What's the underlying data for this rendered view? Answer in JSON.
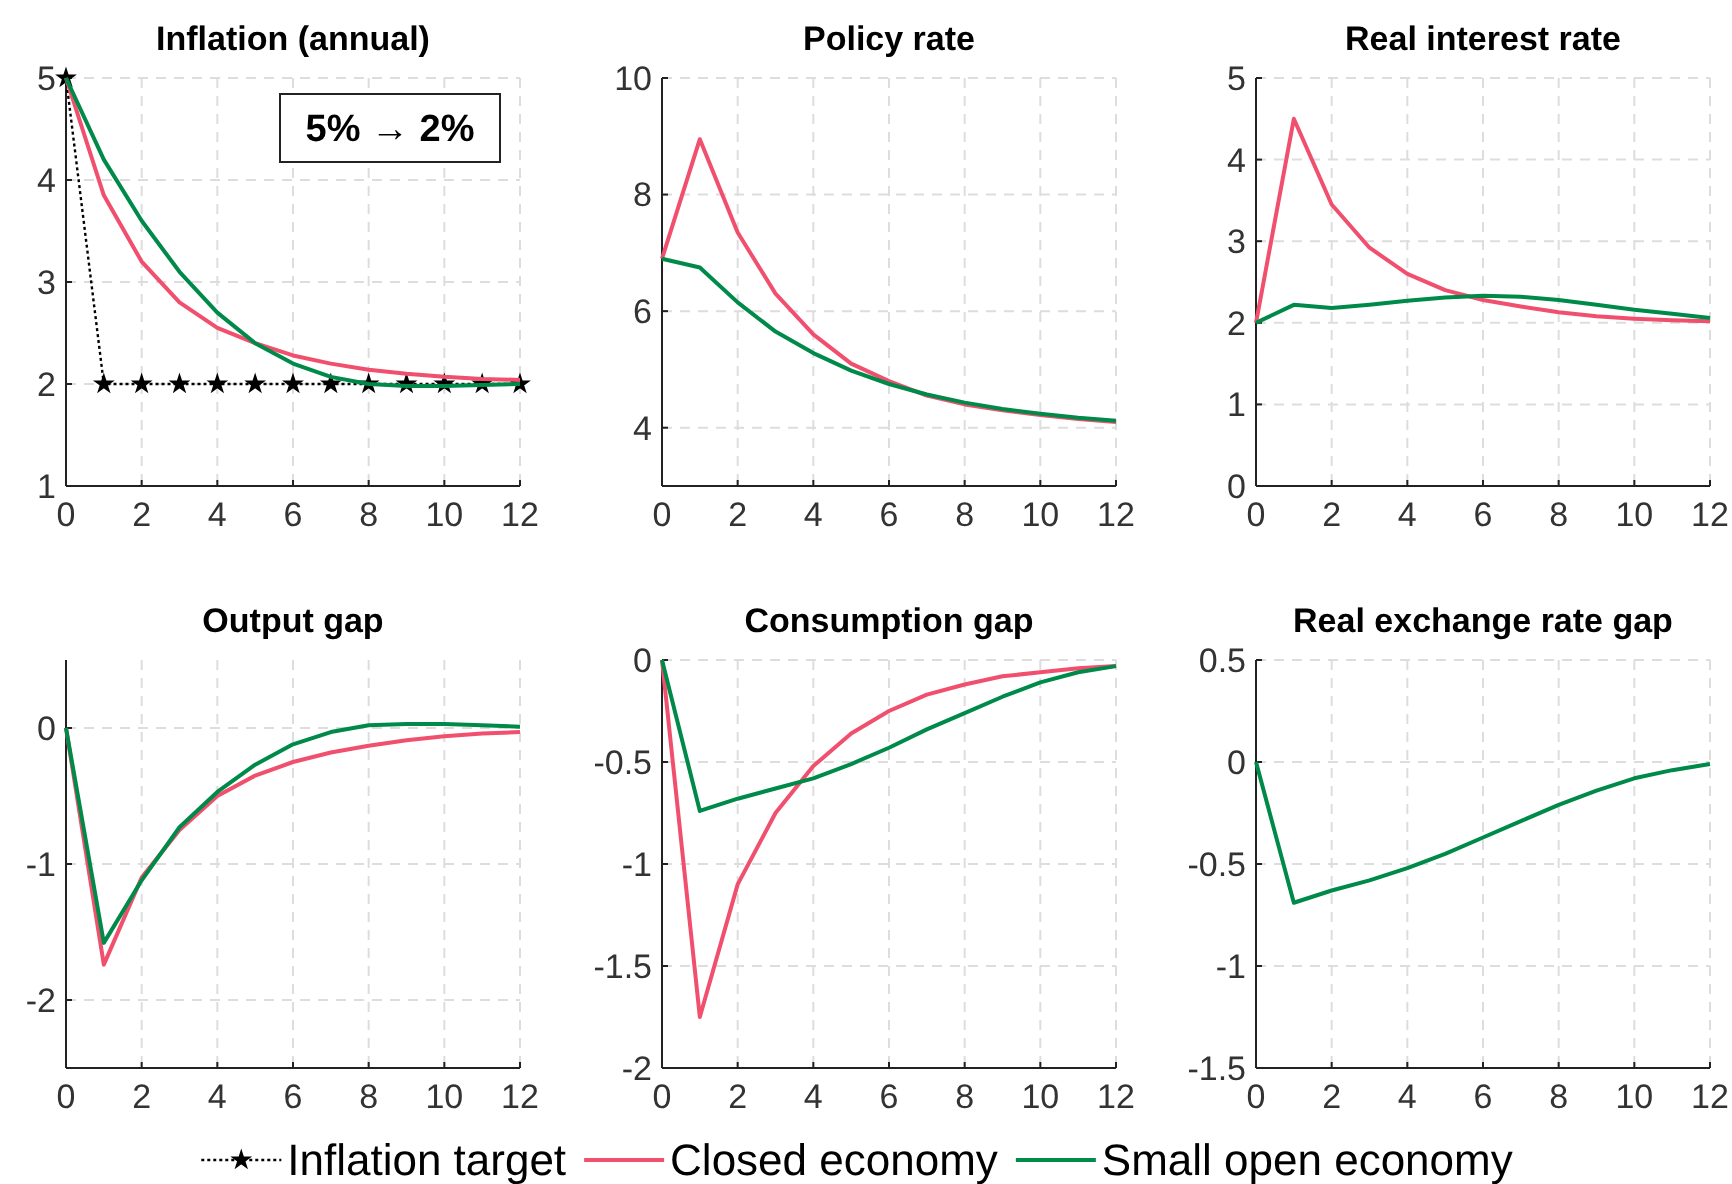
{
  "chart_data": [
    {
      "type": "line",
      "title": "Inflation (annual)",
      "x": [
        0,
        1,
        2,
        3,
        4,
        5,
        6,
        7,
        8,
        9,
        10,
        11,
        12
      ],
      "xlim": [
        0,
        12
      ],
      "xticks": [
        0,
        2,
        4,
        6,
        8,
        10,
        12
      ],
      "ylim": [
        1,
        5
      ],
      "yticks": [
        1,
        2,
        3,
        4,
        5
      ],
      "grid": true,
      "legend": "bottom",
      "annotations": [
        "5% → 2%"
      ],
      "series": [
        {
          "name": "Inflation target",
          "color": "#000000",
          "line_style": "dotted",
          "marker": "star",
          "values": [
            5,
            2,
            2,
            2,
            2,
            2,
            2,
            2,
            2,
            2,
            2,
            2,
            2
          ]
        },
        {
          "name": "Closed economy",
          "color": "#f0506e",
          "values": [
            5,
            3.85,
            3.2,
            2.8,
            2.55,
            2.4,
            2.28,
            2.2,
            2.14,
            2.1,
            2.07,
            2.05,
            2.04
          ]
        },
        {
          "name": "Small open economy",
          "color": "#008a4a",
          "values": [
            5,
            4.2,
            3.6,
            3.1,
            2.7,
            2.4,
            2.2,
            2.07,
            2.0,
            1.98,
            1.98,
            1.99,
            2.0
          ]
        }
      ]
    },
    {
      "type": "line",
      "title": "Policy rate",
      "x": [
        0,
        1,
        2,
        3,
        4,
        5,
        6,
        7,
        8,
        9,
        10,
        11,
        12
      ],
      "xlim": [
        0,
        12
      ],
      "xticks": [
        0,
        2,
        4,
        6,
        8,
        10,
        12
      ],
      "ylim": [
        3,
        10
      ],
      "yticks": [
        4,
        6,
        8,
        10
      ],
      "grid": true,
      "series": [
        {
          "color": "#f0506e",
          "values": [
            6.9,
            8.95,
            7.35,
            6.3,
            5.6,
            5.1,
            4.8,
            4.55,
            4.4,
            4.3,
            4.22,
            4.15,
            4.1
          ]
        },
        {
          "color": "#008a4a",
          "values": [
            6.9,
            6.75,
            6.15,
            5.65,
            5.28,
            4.98,
            4.75,
            4.57,
            4.43,
            4.32,
            4.24,
            4.17,
            4.12
          ]
        }
      ]
    },
    {
      "type": "line",
      "title": "Real interest rate",
      "x": [
        0,
        1,
        2,
        3,
        4,
        5,
        6,
        7,
        8,
        9,
        10,
        11,
        12
      ],
      "xlim": [
        0,
        12
      ],
      "xticks": [
        0,
        2,
        4,
        6,
        8,
        10,
        12
      ],
      "ylim": [
        0,
        5
      ],
      "yticks": [
        0,
        1,
        2,
        3,
        4,
        5
      ],
      "grid": true,
      "series": [
        {
          "color": "#f0506e",
          "values": [
            2.0,
            4.5,
            3.45,
            2.92,
            2.6,
            2.4,
            2.28,
            2.2,
            2.13,
            2.08,
            2.05,
            2.03,
            2.02
          ]
        },
        {
          "color": "#008a4a",
          "values": [
            2.0,
            2.22,
            2.18,
            2.22,
            2.27,
            2.31,
            2.33,
            2.32,
            2.28,
            2.22,
            2.16,
            2.11,
            2.06
          ]
        }
      ]
    },
    {
      "type": "line",
      "title": "Output gap",
      "x": [
        0,
        1,
        2,
        3,
        4,
        5,
        6,
        7,
        8,
        9,
        10,
        11,
        12
      ],
      "xlim": [
        0,
        12
      ],
      "xticks": [
        0,
        2,
        4,
        6,
        8,
        10,
        12
      ],
      "ylim": [
        -2.5,
        0.5
      ],
      "yticks": [
        -2,
        -1,
        0
      ],
      "grid": true,
      "series": [
        {
          "color": "#f0506e",
          "values": [
            0,
            -1.74,
            -1.1,
            -0.75,
            -0.5,
            -0.35,
            -0.25,
            -0.18,
            -0.13,
            -0.09,
            -0.06,
            -0.04,
            -0.03
          ]
        },
        {
          "color": "#008a4a",
          "values": [
            0,
            -1.58,
            -1.12,
            -0.73,
            -0.47,
            -0.27,
            -0.12,
            -0.03,
            0.02,
            0.03,
            0.03,
            0.02,
            0.01
          ]
        }
      ]
    },
    {
      "type": "line",
      "title": "Consumption gap",
      "x": [
        0,
        1,
        2,
        3,
        4,
        5,
        6,
        7,
        8,
        9,
        10,
        11,
        12
      ],
      "xlim": [
        0,
        12
      ],
      "xticks": [
        0,
        2,
        4,
        6,
        8,
        10,
        12
      ],
      "ylim": [
        -2,
        0
      ],
      "yticks": [
        -2,
        -1.5,
        -1,
        -0.5,
        0
      ],
      "grid": true,
      "series": [
        {
          "color": "#f0506e",
          "values": [
            0,
            -1.75,
            -1.1,
            -0.75,
            -0.52,
            -0.36,
            -0.25,
            -0.17,
            -0.12,
            -0.08,
            -0.06,
            -0.04,
            -0.03
          ]
        },
        {
          "color": "#008a4a",
          "values": [
            0,
            -0.74,
            -0.68,
            -0.63,
            -0.58,
            -0.51,
            -0.43,
            -0.34,
            -0.26,
            -0.18,
            -0.11,
            -0.06,
            -0.03
          ]
        }
      ]
    },
    {
      "type": "line",
      "title": "Real exchange rate gap",
      "x": [
        0,
        1,
        2,
        3,
        4,
        5,
        6,
        7,
        8,
        9,
        10,
        11,
        12
      ],
      "xlim": [
        0,
        12
      ],
      "xticks": [
        0,
        2,
        4,
        6,
        8,
        10,
        12
      ],
      "ylim": [
        -1.5,
        0.5
      ],
      "yticks": [
        -1.5,
        -1,
        -0.5,
        0,
        0.5
      ],
      "grid": true,
      "series": [
        {
          "color": "#008a4a",
          "values": [
            0,
            -0.69,
            -0.63,
            -0.58,
            -0.52,
            -0.45,
            -0.37,
            -0.29,
            -0.21,
            -0.14,
            -0.08,
            -0.04,
            -0.01
          ]
        }
      ]
    }
  ]
}
